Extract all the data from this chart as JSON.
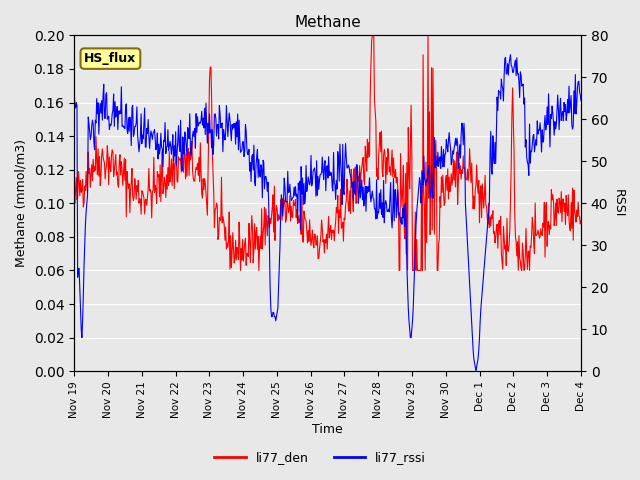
{
  "title": "Methane",
  "xlabel": "Time",
  "ylabel_left": "Methane (mmol/m3)",
  "ylabel_right": "RSSI",
  "ylim_left": [
    0.0,
    0.2
  ],
  "ylim_right": [
    0,
    80
  ],
  "yticks_left": [
    0.0,
    0.02,
    0.04,
    0.06,
    0.08,
    0.1,
    0.12,
    0.14,
    0.16,
    0.18,
    0.2
  ],
  "yticks_right": [
    0,
    10,
    20,
    30,
    40,
    50,
    60,
    70,
    80
  ],
  "bg_color": "#e8e8e8",
  "plot_bg_color": "#e8e8e8",
  "line_color_red": "#ff0000",
  "line_color_blue": "#0000ff",
  "legend_label_red": "li77_den",
  "legend_label_blue": "li77_rssi",
  "hs_flux_box_color": "#ffff99",
  "hs_flux_border_color": "#8B6914",
  "hs_flux_text": "HS_flux",
  "n_points": 720,
  "xtick_labels": [
    "Nov 19",
    "Nov 20",
    "Nov 21",
    "Nov 22",
    "Nov 23",
    "Nov 24",
    "Nov 25",
    "Nov 26",
    "Nov 27",
    "Nov 28",
    "Nov 29",
    "Nov 30",
    "Dec 1",
    "Dec 2",
    "Dec 3",
    "Dec 4"
  ],
  "xtick_positions": [
    0,
    1,
    2,
    3,
    4,
    5,
    6,
    7,
    8,
    9,
    10,
    11,
    12,
    13,
    14,
    15
  ]
}
